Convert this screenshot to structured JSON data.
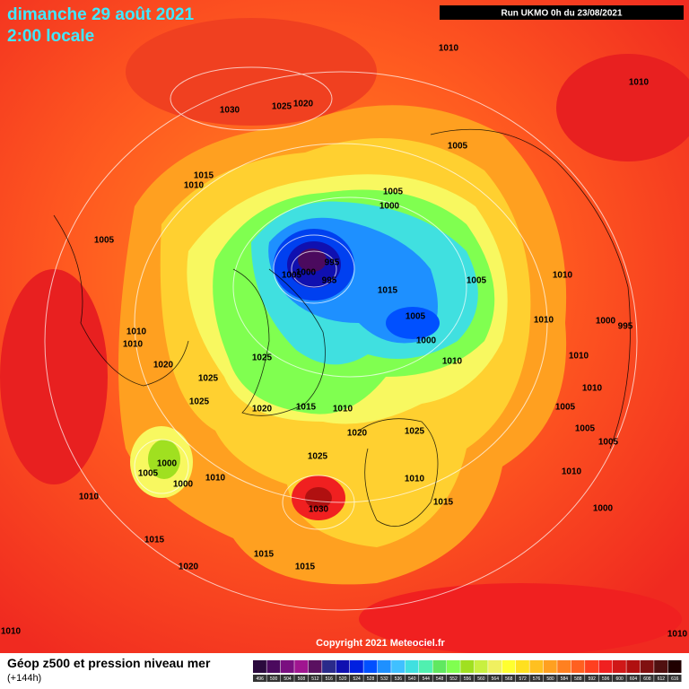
{
  "header": {
    "date": "dimanche 29 août 2021",
    "time": "2:00 locale",
    "run": "Run UKMO 0h du 23/08/2021"
  },
  "copyright": "Copyright 2021 Meteociel.fr",
  "footer": {
    "title": "Géop z500 et pression niveau mer",
    "lead": "(+144h)"
  },
  "colorbar": {
    "ticks": [
      496,
      500,
      504,
      508,
      512,
      516,
      520,
      524,
      528,
      532,
      536,
      540,
      544,
      548,
      552,
      556,
      560,
      564,
      568,
      572,
      576,
      580,
      584,
      588,
      592,
      596,
      600,
      604,
      608,
      612,
      616
    ],
    "colors": [
      "#2b0a3d",
      "#4b0a5e",
      "#7a0f80",
      "#a01590",
      "#5a1060",
      "#2a2a8a",
      "#1010b0",
      "#0020e0",
      "#0050ff",
      "#1e90ff",
      "#40c0ff",
      "#40e0e0",
      "#50f0b0",
      "#60e860",
      "#80ff50",
      "#a0e020",
      "#c8f040",
      "#f0f060",
      "#ffff30",
      "#ffe020",
      "#ffc020",
      "#ffa020",
      "#ff8020",
      "#ff6020",
      "#ff4020",
      "#f02020",
      "#d01818",
      "#b01010",
      "#801010",
      "#501010",
      "#200000"
    ]
  },
  "isobar_labels": [
    "1010",
    "1010",
    "1030",
    "1025",
    "1020",
    "1005",
    "1015",
    "1010",
    "1005",
    "1000",
    "1005",
    "1005",
    "1000",
    "995",
    "995",
    "1015",
    "1005",
    "1010",
    "1005",
    "1010",
    "1000",
    "995",
    "1010",
    "1010",
    "1000",
    "1010",
    "1025",
    "1010",
    "1020",
    "1025",
    "1010",
    "1025",
    "1020",
    "1015",
    "1010",
    "1005",
    "1005",
    "1020",
    "1025",
    "1005",
    "1000",
    "1005",
    "1000",
    "1010",
    "1025",
    "1010",
    "1010",
    "1010",
    "1030",
    "1015",
    "1000",
    "1015",
    "1015",
    "1015",
    "1020",
    "1010",
    "1010"
  ]
}
